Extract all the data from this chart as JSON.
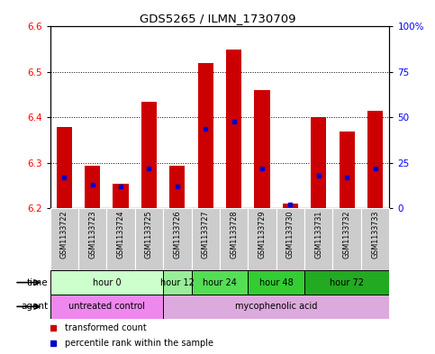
{
  "title": "GDS5265 / ILMN_1730709",
  "samples": [
    "GSM1133722",
    "GSM1133723",
    "GSM1133724",
    "GSM1133725",
    "GSM1133726",
    "GSM1133727",
    "GSM1133728",
    "GSM1133729",
    "GSM1133730",
    "GSM1133731",
    "GSM1133732",
    "GSM1133733"
  ],
  "bar_tops": [
    6.38,
    6.295,
    6.255,
    6.435,
    6.295,
    6.52,
    6.55,
    6.46,
    6.21,
    6.4,
    6.37,
    6.415
  ],
  "bar_base": 6.2,
  "blue_dots_pct": [
    17,
    13,
    12,
    22,
    12,
    44,
    48,
    22,
    2,
    18,
    17,
    22
  ],
  "ylim": [
    6.2,
    6.6
  ],
  "y_left_ticks": [
    6.2,
    6.3,
    6.4,
    6.5,
    6.6
  ],
  "y_right_ticks": [
    0,
    25,
    50,
    75,
    100
  ],
  "bar_color": "#cc0000",
  "blue_color": "#0000cc",
  "time_groups": [
    {
      "label": "hour 0",
      "start": 0,
      "end": 4,
      "color": "#ccffcc"
    },
    {
      "label": "hour 12",
      "start": 4,
      "end": 5,
      "color": "#99ee99"
    },
    {
      "label": "hour 24",
      "start": 5,
      "end": 7,
      "color": "#55dd55"
    },
    {
      "label": "hour 48",
      "start": 7,
      "end": 9,
      "color": "#33cc33"
    },
    {
      "label": "hour 72",
      "start": 9,
      "end": 12,
      "color": "#22aa22"
    }
  ],
  "agent_groups": [
    {
      "label": "untreated control",
      "start": 0,
      "end": 4,
      "color": "#ee88ee"
    },
    {
      "label": "mycophenolic acid",
      "start": 4,
      "end": 12,
      "color": "#ddaadd"
    }
  ],
  "legend_items": [
    {
      "label": "transformed count",
      "color": "#cc0000"
    },
    {
      "label": "percentile rank within the sample",
      "color": "#0000cc"
    }
  ],
  "xlabel_time": "time",
  "xlabel_agent": "agent"
}
